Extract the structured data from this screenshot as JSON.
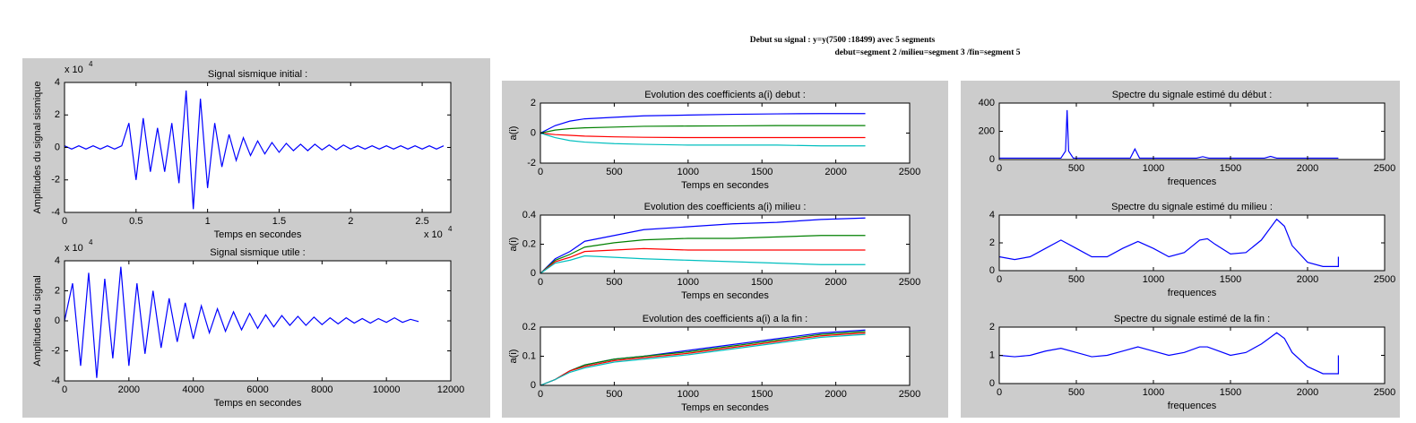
{
  "figure": {
    "title": [
      "Debut su signal : y=y(7500 :18499) avec 5 segments",
      "debut=segment 2 /milieu=segment 3 /fin=segment 5"
    ]
  },
  "chart_data": [
    {
      "type": "line",
      "title": "Signal sismique initial :",
      "xlabel": "Temps en secondes",
      "ylabel": "Amplitudes du signal sismique",
      "x_multiplier": {
        "base": "x 10",
        "exponent": "4"
      },
      "y_multiplier": {
        "base": "x 10",
        "exponent": "4"
      },
      "x": [
        0,
        0.05,
        0.1,
        0.15,
        0.2,
        0.25,
        0.3,
        0.35,
        0.4,
        0.45,
        0.5,
        0.55,
        0.6,
        0.65,
        0.7,
        0.75,
        0.8,
        0.85,
        0.9,
        0.95,
        1.0,
        1.05,
        1.1,
        1.15,
        1.2,
        1.25,
        1.3,
        1.35,
        1.4,
        1.45,
        1.5,
        1.55,
        1.6,
        1.65,
        1.7,
        1.75,
        1.8,
        1.85,
        1.9,
        1.95,
        2.0,
        2.05,
        2.1,
        2.15,
        2.2,
        2.25,
        2.3,
        2.35,
        2.4,
        2.45,
        2.5,
        2.55,
        2.6,
        2.65
      ],
      "series": [
        {
          "color": "#0000ff",
          "values": [
            0.1,
            -0.1,
            0.1,
            -0.1,
            0.1,
            -0.1,
            0.1,
            -0.1,
            0.1,
            1.5,
            -2.0,
            1.8,
            -1.5,
            1.2,
            -1.5,
            1.5,
            -2.2,
            3.5,
            -3.8,
            3.0,
            -2.5,
            1.5,
            -1.2,
            0.8,
            -0.8,
            0.6,
            -0.5,
            0.4,
            -0.4,
            0.3,
            -0.3,
            0.25,
            -0.2,
            0.2,
            -0.2,
            0.2,
            -0.15,
            0.15,
            -0.15,
            0.15,
            -0.1,
            0.1,
            -0.1,
            0.1,
            -0.1,
            0.1,
            -0.1,
            0.1,
            -0.1,
            0.1,
            -0.1,
            0.1,
            -0.1,
            0.1
          ]
        }
      ],
      "xlim": [
        0,
        2.7
      ],
      "xticks": [
        0,
        0.5,
        1,
        1.5,
        2,
        2.5
      ],
      "ylim": [
        -4,
        4
      ],
      "yticks": [
        {
          "value": -4,
          "label": "-4"
        },
        {
          "value": -2,
          "label": "-2"
        },
        0,
        2,
        4
      ]
    },
    {
      "type": "line",
      "title": "Signal sismique utile :",
      "xlabel": "Temps en secondes",
      "ylabel": "Amplitudes du signal",
      "y_multiplier": {
        "base": "x 10",
        "exponent": "4"
      },
      "x": [
        0,
        250,
        500,
        750,
        1000,
        1250,
        1500,
        1750,
        2000,
        2250,
        2500,
        2750,
        3000,
        3250,
        3500,
        3750,
        4000,
        4250,
        4500,
        4750,
        5000,
        5250,
        5500,
        5750,
        6000,
        6250,
        6500,
        6750,
        7000,
        7250,
        7500,
        7750,
        8000,
        8250,
        8500,
        8750,
        9000,
        9250,
        9500,
        9750,
        10000,
        10250,
        10500,
        10750,
        11000
      ],
      "series": [
        {
          "color": "#0000ff",
          "values": [
            0,
            2.5,
            -3.0,
            3.2,
            -3.8,
            2.8,
            -2.5,
            3.6,
            -3.0,
            2.5,
            -2.2,
            2.0,
            -1.8,
            1.5,
            -1.4,
            1.2,
            -1.2,
            1.0,
            -0.8,
            0.8,
            -0.7,
            0.6,
            -0.6,
            0.5,
            -0.5,
            0.4,
            -0.4,
            0.35,
            -0.3,
            0.3,
            -0.3,
            0.25,
            -0.25,
            0.2,
            -0.2,
            0.2,
            -0.15,
            0.15,
            -0.15,
            0.15,
            -0.1,
            0.2,
            -0.1,
            0.1,
            -0.05
          ]
        }
      ],
      "xlim": [
        0,
        12000
      ],
      "xticks": [
        0,
        2000,
        4000,
        6000,
        8000,
        10000,
        12000
      ],
      "ylim": [
        -4,
        4
      ],
      "yticks": [
        {
          "value": -4,
          "label": "-4"
        },
        {
          "value": -2,
          "label": "-2"
        },
        0,
        2,
        4
      ]
    },
    {
      "type": "line",
      "title": "Evolution des coefficients a(i) debut :",
      "xlabel": "Temps en secondes",
      "ylabel": "a(i)",
      "x": [
        0,
        100,
        200,
        300,
        500,
        700,
        1000,
        1300,
        1600,
        1900,
        2200
      ],
      "series": [
        {
          "color": "#0000ff",
          "values": [
            0,
            0.5,
            0.8,
            0.95,
            1.05,
            1.15,
            1.2,
            1.25,
            1.28,
            1.3,
            1.3
          ]
        },
        {
          "color": "#008000",
          "values": [
            0,
            0.2,
            0.3,
            0.35,
            0.4,
            0.45,
            0.47,
            0.48,
            0.5,
            0.5,
            0.5
          ]
        },
        {
          "color": "#ff0000",
          "values": [
            0,
            -0.1,
            -0.15,
            -0.2,
            -0.25,
            -0.28,
            -0.3,
            -0.3,
            -0.3,
            -0.3,
            -0.3
          ]
        },
        {
          "color": "#00bfbf",
          "values": [
            0,
            -0.3,
            -0.5,
            -0.6,
            -0.7,
            -0.75,
            -0.8,
            -0.8,
            -0.8,
            -0.85,
            -0.85
          ]
        }
      ],
      "xlim": [
        0,
        2500
      ],
      "xticks": [
        0,
        500,
        1000,
        1500,
        2000,
        2500
      ],
      "ylim": [
        -2,
        2
      ],
      "yticks": [
        {
          "value": -2,
          "label": "-2"
        },
        0,
        2
      ]
    },
    {
      "type": "line",
      "title": "Evolution des coefficients a(i) milieu :",
      "xlabel": "Temps en secondes",
      "ylabel": "a(i)",
      "x": [
        0,
        100,
        200,
        300,
        500,
        700,
        1000,
        1300,
        1600,
        1900,
        2200
      ],
      "series": [
        {
          "color": "#0000ff",
          "values": [
            0,
            0.1,
            0.15,
            0.22,
            0.26,
            0.3,
            0.32,
            0.34,
            0.35,
            0.37,
            0.38
          ]
        },
        {
          "color": "#008000",
          "values": [
            0,
            0.09,
            0.13,
            0.18,
            0.21,
            0.23,
            0.24,
            0.24,
            0.25,
            0.26,
            0.26
          ]
        },
        {
          "color": "#ff0000",
          "values": [
            0,
            0.08,
            0.11,
            0.15,
            0.16,
            0.17,
            0.16,
            0.16,
            0.16,
            0.16,
            0.16
          ]
        },
        {
          "color": "#00bfbf",
          "values": [
            0,
            0.07,
            0.09,
            0.12,
            0.11,
            0.1,
            0.09,
            0.08,
            0.07,
            0.06,
            0.06
          ]
        }
      ],
      "xlim": [
        0,
        2500
      ],
      "xticks": [
        0,
        500,
        1000,
        1500,
        2000,
        2500
      ],
      "ylim": [
        0,
        0.4
      ],
      "yticks": [
        0,
        0.2,
        0.4
      ]
    },
    {
      "type": "line",
      "title": "Evolution des coefficients a(i) a la fin :",
      "xlabel": "Temps en secondes",
      "ylabel": "a(i)",
      "x": [
        0,
        100,
        200,
        300,
        500,
        700,
        1000,
        1300,
        1600,
        1900,
        2200
      ],
      "series": [
        {
          "color": "#0000ff",
          "values": [
            0,
            0.02,
            0.05,
            0.07,
            0.09,
            0.1,
            0.12,
            0.14,
            0.16,
            0.18,
            0.19
          ]
        },
        {
          "color": "#008000",
          "values": [
            0,
            0.02,
            0.05,
            0.07,
            0.09,
            0.1,
            0.115,
            0.135,
            0.155,
            0.175,
            0.185
          ]
        },
        {
          "color": "#ff0000",
          "values": [
            0,
            0.02,
            0.05,
            0.065,
            0.085,
            0.095,
            0.11,
            0.13,
            0.15,
            0.17,
            0.18
          ]
        },
        {
          "color": "#00bfbf",
          "values": [
            0,
            0.02,
            0.045,
            0.06,
            0.08,
            0.09,
            0.105,
            0.125,
            0.145,
            0.165,
            0.175
          ]
        }
      ],
      "xlim": [
        0,
        2500
      ],
      "xticks": [
        0,
        500,
        1000,
        1500,
        2000,
        2500
      ],
      "ylim": [
        0,
        0.2
      ],
      "yticks": [
        0,
        0.1,
        0.2
      ]
    },
    {
      "type": "line",
      "title": "Spectre du signale estimé du début :",
      "xlabel": "frequences",
      "x": [
        0,
        400,
        430,
        440,
        450,
        480,
        850,
        880,
        910,
        1280,
        1320,
        1360,
        1720,
        1760,
        1800,
        2200
      ],
      "series": [
        {
          "color": "#0000ff",
          "values": [
            10,
            10,
            60,
            350,
            60,
            10,
            10,
            75,
            10,
            10,
            20,
            10,
            10,
            22,
            10,
            10
          ]
        }
      ],
      "xlim": [
        0,
        2500
      ],
      "xticks": [
        0,
        500,
        1000,
        1500,
        2000,
        2500
      ],
      "ylim": [
        0,
        400
      ],
      "yticks": [
        0,
        200,
        400
      ]
    },
    {
      "type": "line",
      "title": "Spectre du signale estimé du milieu :",
      "xlabel": "frequences",
      "x": [
        0,
        100,
        200,
        300,
        400,
        500,
        600,
        700,
        800,
        900,
        1000,
        1100,
        1200,
        1300,
        1350,
        1400,
        1500,
        1600,
        1700,
        1800,
        1850,
        1900,
        2000,
        2100,
        2200,
        2200
      ],
      "series": [
        {
          "color": "#0000ff",
          "values": [
            1.0,
            0.8,
            1.0,
            1.6,
            2.2,
            1.6,
            1.0,
            1.0,
            1.6,
            2.1,
            1.6,
            1.0,
            1.3,
            2.2,
            2.3,
            1.9,
            1.2,
            1.3,
            2.2,
            3.7,
            3.2,
            1.8,
            0.6,
            0.3,
            0.3,
            1.0
          ]
        }
      ],
      "xlim": [
        0,
        2500
      ],
      "xticks": [
        0,
        500,
        1000,
        1500,
        2000,
        2500
      ],
      "ylim": [
        0,
        4
      ],
      "yticks": [
        0,
        2,
        4
      ]
    },
    {
      "type": "line",
      "title": "Spectre du signale estimé de la fin :",
      "xlabel": "frequences",
      "x": [
        0,
        100,
        200,
        300,
        400,
        500,
        600,
        700,
        800,
        900,
        1000,
        1100,
        1200,
        1300,
        1350,
        1400,
        1500,
        1600,
        1700,
        1800,
        1850,
        1900,
        2000,
        2100,
        2200,
        2200
      ],
      "series": [
        {
          "color": "#0000ff",
          "values": [
            1.0,
            0.95,
            1.0,
            1.15,
            1.25,
            1.1,
            0.95,
            1.0,
            1.15,
            1.3,
            1.15,
            1.0,
            1.1,
            1.3,
            1.3,
            1.2,
            1.0,
            1.1,
            1.4,
            1.8,
            1.6,
            1.1,
            0.6,
            0.35,
            0.35,
            1.0
          ]
        }
      ],
      "xlim": [
        0,
        2500
      ],
      "xticks": [
        0,
        500,
        1000,
        1500,
        2000,
        2500
      ],
      "ylim": [
        0,
        2
      ],
      "yticks": [
        0,
        1,
        2
      ]
    }
  ]
}
